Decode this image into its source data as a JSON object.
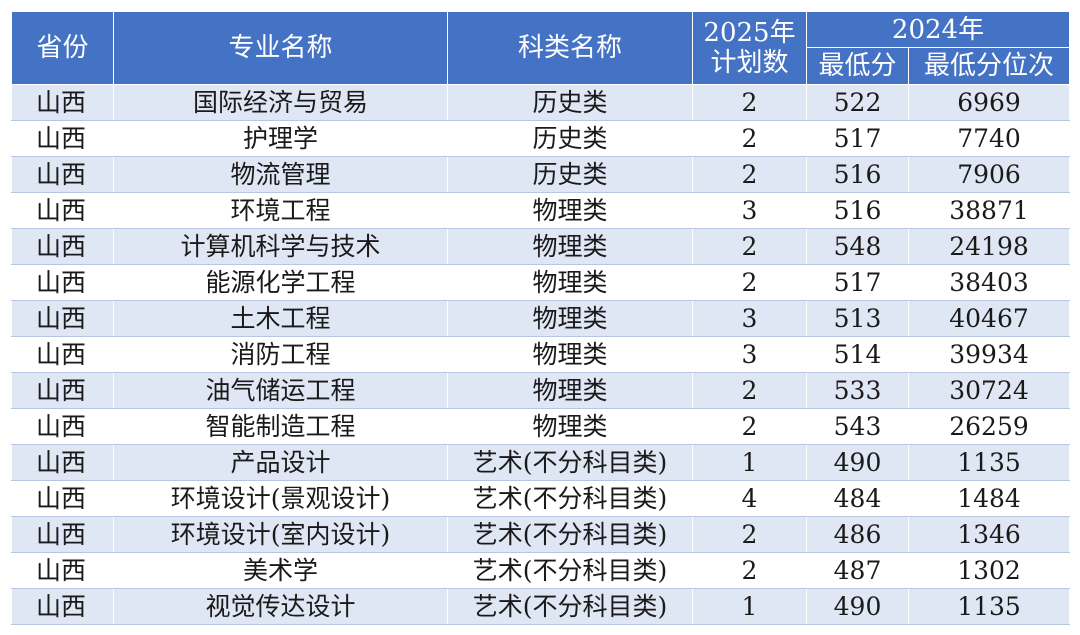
{
  "headers": {
    "province": "省份",
    "major": "专业名称",
    "category": "科类名称",
    "plan_year": "2025年",
    "plan_label": "计划数",
    "prev_year": "2024年",
    "min_score": "最低分",
    "min_rank": "最低分位次"
  },
  "rows": [
    {
      "province": "山西",
      "major": "国际经济与贸易",
      "category": "历史类",
      "plan": "2",
      "min_score": "522",
      "min_rank": "6969"
    },
    {
      "province": "山西",
      "major": "护理学",
      "category": "历史类",
      "plan": "2",
      "min_score": "517",
      "min_rank": "7740"
    },
    {
      "province": "山西",
      "major": "物流管理",
      "category": "历史类",
      "plan": "2",
      "min_score": "516",
      "min_rank": "7906"
    },
    {
      "province": "山西",
      "major": "环境工程",
      "category": "物理类",
      "plan": "3",
      "min_score": "516",
      "min_rank": "38871"
    },
    {
      "province": "山西",
      "major": "计算机科学与技术",
      "category": "物理类",
      "plan": "2",
      "min_score": "548",
      "min_rank": "24198"
    },
    {
      "province": "山西",
      "major": "能源化学工程",
      "category": "物理类",
      "plan": "2",
      "min_score": "517",
      "min_rank": "38403"
    },
    {
      "province": "山西",
      "major": "土木工程",
      "category": "物理类",
      "plan": "3",
      "min_score": "513",
      "min_rank": "40467"
    },
    {
      "province": "山西",
      "major": "消防工程",
      "category": "物理类",
      "plan": "3",
      "min_score": "514",
      "min_rank": "39934"
    },
    {
      "province": "山西",
      "major": "油气储运工程",
      "category": "物理类",
      "plan": "2",
      "min_score": "533",
      "min_rank": "30724"
    },
    {
      "province": "山西",
      "major": "智能制造工程",
      "category": "物理类",
      "plan": "2",
      "min_score": "543",
      "min_rank": "26259"
    },
    {
      "province": "山西",
      "major": "产品设计",
      "category": "艺术(不分科目类)",
      "plan": "1",
      "min_score": "490",
      "min_rank": "1135"
    },
    {
      "province": "山西",
      "major": "环境设计(景观设计)",
      "category": "艺术(不分科目类)",
      "plan": "4",
      "min_score": "484",
      "min_rank": "1484"
    },
    {
      "province": "山西",
      "major": "环境设计(室内设计)",
      "category": "艺术(不分科目类)",
      "plan": "2",
      "min_score": "486",
      "min_rank": "1346"
    },
    {
      "province": "山西",
      "major": "美术学",
      "category": "艺术(不分科目类)",
      "plan": "2",
      "min_score": "487",
      "min_rank": "1302"
    },
    {
      "province": "山西",
      "major": "视觉传达设计",
      "category": "艺术(不分科目类)",
      "plan": "1",
      "min_score": "490",
      "min_rank": "1135"
    }
  ]
}
